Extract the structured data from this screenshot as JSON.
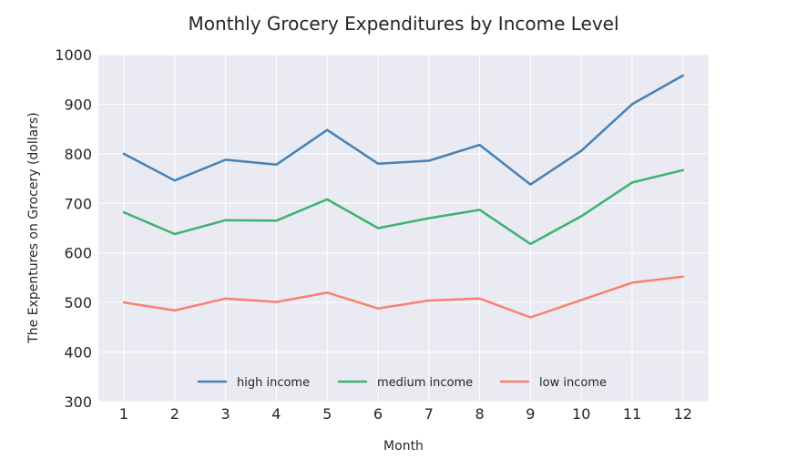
{
  "chart_data": {
    "type": "line",
    "title": "Monthly Grocery Expenditures by Income Level",
    "xlabel": "Month",
    "ylabel": "The Expentures on Grocery (dollars)",
    "x": [
      1,
      2,
      3,
      4,
      5,
      6,
      7,
      8,
      9,
      10,
      11,
      12
    ],
    "x_tick_labels": [
      "1",
      "2",
      "3",
      "4",
      "5",
      "6",
      "7",
      "8",
      "9",
      "10",
      "11",
      "12"
    ],
    "ylim": [
      300,
      1000
    ],
    "y_ticks": [
      300,
      400,
      500,
      600,
      700,
      800,
      900,
      1000
    ],
    "grid": true,
    "legend_placement": "lower center",
    "series": [
      {
        "name": "high income",
        "color": "#4682b4",
        "values": [
          800,
          746,
          788,
          778,
          848,
          780,
          786,
          818,
          738,
          806,
          900,
          958
        ]
      },
      {
        "name": "medium income",
        "color": "#3cb371",
        "values": [
          682,
          638,
          666,
          665,
          708,
          650,
          670,
          687,
          618,
          674,
          742,
          767
        ]
      },
      {
        "name": "low income",
        "color": "#fa8072",
        "values": [
          500,
          484,
          508,
          501,
          520,
          488,
          504,
          508,
          470,
          505,
          540,
          552
        ]
      }
    ]
  }
}
